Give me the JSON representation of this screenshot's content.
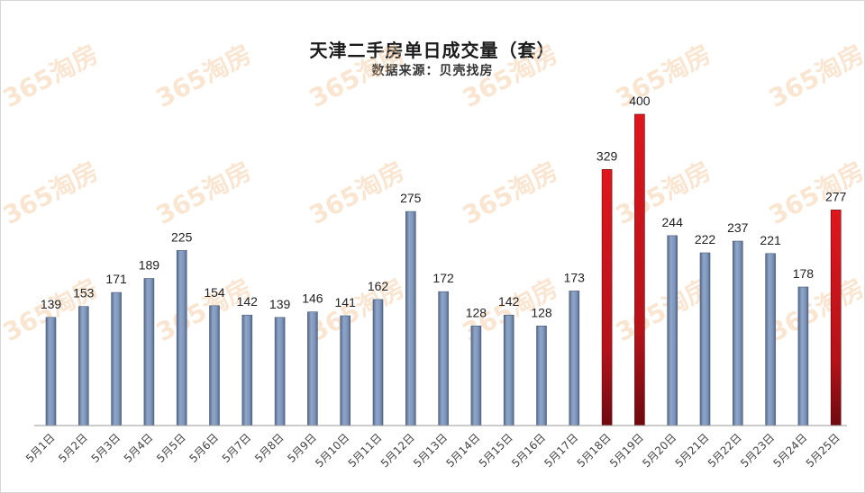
{
  "chart_data": {
    "type": "bar",
    "title": "天津二手房单日成交量（套）",
    "subtitle": "数据来源：贝壳找房",
    "categories": [
      "5月1日",
      "5月2日",
      "5月3日",
      "5月4日",
      "5月5日",
      "5月6日",
      "5月7日",
      "5月8日",
      "5月9日",
      "5月10日",
      "5月11日",
      "5月12日",
      "5月13日",
      "5月14日",
      "5月15日",
      "5月16日",
      "5月17日",
      "5月18日",
      "5月19日",
      "5月20日",
      "5月21日",
      "5月22日",
      "5月23日",
      "5月24日",
      "5月25日"
    ],
    "values": [
      139,
      153,
      171,
      189,
      225,
      154,
      142,
      139,
      146,
      141,
      162,
      275,
      172,
      128,
      142,
      128,
      173,
      329,
      400,
      244,
      222,
      237,
      221,
      178,
      277
    ],
    "highlighted": [
      "5月18日",
      "5月19日",
      "5月25日"
    ],
    "ylim": [
      0,
      400
    ],
    "grid": false,
    "colors": {
      "normal_bar": "#7b93b8",
      "highlight_bar": "#c8161c",
      "axis": "#999999"
    }
  },
  "watermark": "365淘房"
}
